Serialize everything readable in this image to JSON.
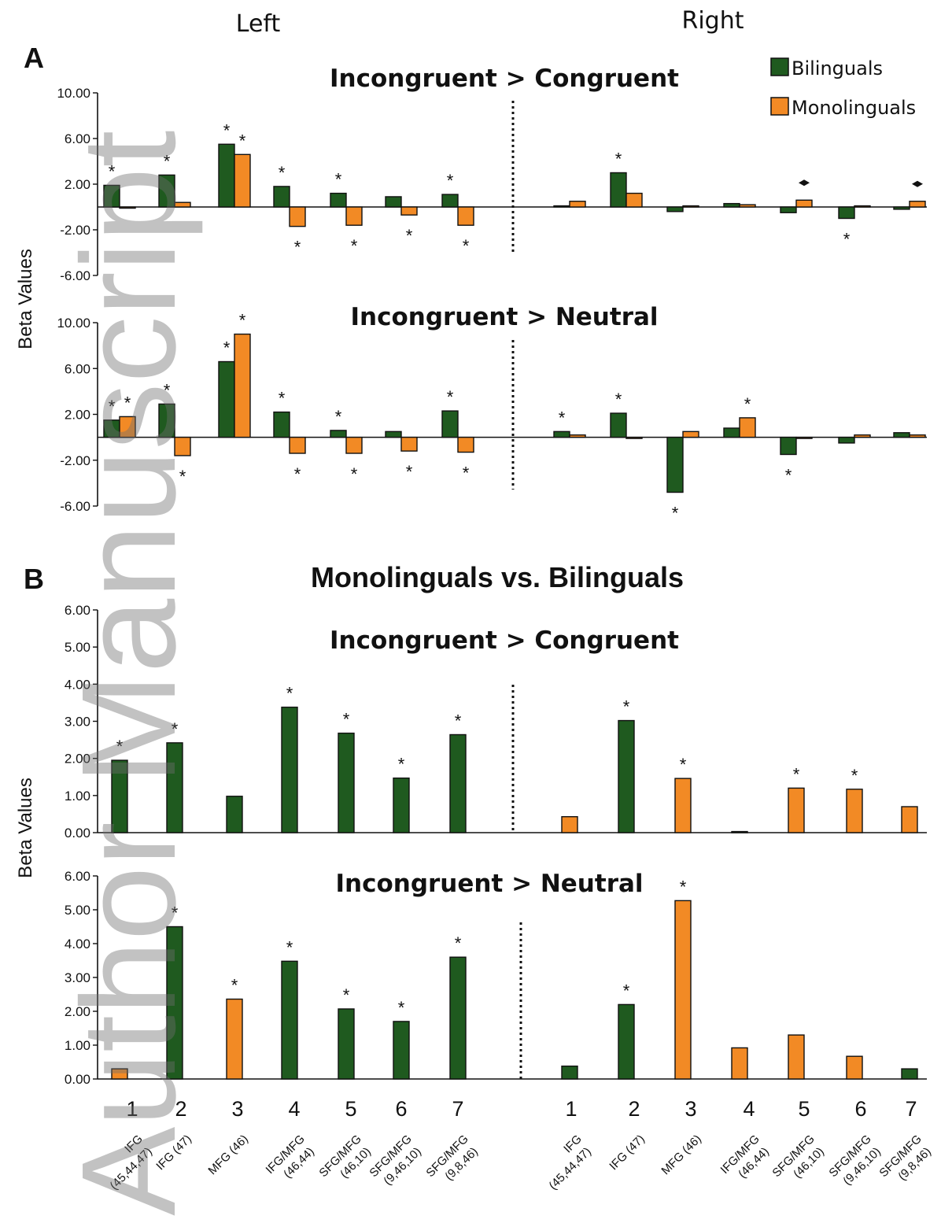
{
  "figure": {
    "hemisphere_labels": [
      "Left",
      "Right"
    ],
    "section_labels": [
      "A",
      "B"
    ],
    "section_b_title": "Monolinguals vs. Bilinguals",
    "ylabel": "Beta Values",
    "watermark": "Author Manuscript",
    "colors": {
      "bilinguals": "#1f5a1f",
      "monolinguals": "#f28a25",
      "axis": "#111111"
    },
    "legend": [
      {
        "name": "Bilinguals",
        "color": "#1f5a1f"
      },
      {
        "name": "Monolinguals",
        "color": "#f28a25"
      }
    ],
    "x_numbers": [
      "1",
      "2",
      "3",
      "4",
      "5",
      "6",
      "7"
    ],
    "region_labels": [
      [
        "IFG",
        "(45,44,47)"
      ],
      [
        "IFG (47)"
      ],
      [
        "MFG (46)"
      ],
      [
        "IFG/MFG",
        "(46,44)"
      ],
      [
        "SFG/MFG",
        "(46,10)"
      ],
      [
        "SFG/MFG",
        "(9,46,10)"
      ],
      [
        "SFG/MFG",
        "(9,8,46)"
      ]
    ]
  },
  "chart_data": [
    {
      "type": "bar",
      "panel": "A",
      "title": "Incongruent > Congruent",
      "ylabel": "Beta Values",
      "ylim": [
        -6,
        10
      ],
      "yticks": [
        "10.00",
        "6.00",
        "2.00",
        "-2.00",
        "-6.00"
      ],
      "categories": [
        "L1",
        "L2",
        "L3",
        "L4",
        "L5",
        "L6",
        "L7",
        "R1",
        "R2",
        "R3",
        "R4",
        "R5",
        "R6",
        "R7"
      ],
      "series": [
        {
          "name": "Bilinguals",
          "values": [
            1.9,
            2.8,
            5.5,
            1.8,
            1.2,
            0.9,
            1.1,
            0.1,
            3.0,
            -0.4,
            0.3,
            -0.5,
            -1.0,
            -0.2
          ]
        },
        {
          "name": "Monolinguals",
          "values": [
            -0.1,
            0.4,
            4.6,
            -1.7,
            -1.6,
            -0.7,
            -1.6,
            0.5,
            1.2,
            0.1,
            0.2,
            0.6,
            0.1,
            0.5
          ]
        }
      ],
      "markers": [
        {
          "cat": 0,
          "series": 0,
          "mark": "*"
        },
        {
          "cat": 1,
          "series": 0,
          "mark": "*"
        },
        {
          "cat": 2,
          "series": 0,
          "mark": "*"
        },
        {
          "cat": 2,
          "series": 1,
          "mark": "*"
        },
        {
          "cat": 3,
          "series": 0,
          "mark": "*"
        },
        {
          "cat": 3,
          "series": 1,
          "mark": "*"
        },
        {
          "cat": 4,
          "series": 0,
          "mark": "*"
        },
        {
          "cat": 4,
          "series": 1,
          "mark": "*"
        },
        {
          "cat": 5,
          "series": 1,
          "mark": "*"
        },
        {
          "cat": 6,
          "series": 0,
          "mark": "*"
        },
        {
          "cat": 6,
          "series": 1,
          "mark": "*"
        },
        {
          "cat": 8,
          "series": 0,
          "mark": "*"
        },
        {
          "cat": 11,
          "series": 1,
          "mark": "diamond"
        },
        {
          "cat": 12,
          "series": 0,
          "mark": "*"
        },
        {
          "cat": 13,
          "series": 1,
          "mark": "diamond"
        }
      ]
    },
    {
      "type": "bar",
      "panel": "A",
      "title": "Incongruent > Neutral",
      "ylabel": "Beta Values",
      "ylim": [
        -6,
        10
      ],
      "yticks": [
        "10.00",
        "6.00",
        "2.00",
        "-2.00",
        "-6.00"
      ],
      "categories": [
        "L1",
        "L2",
        "L3",
        "L4",
        "L5",
        "L6",
        "L7",
        "R1",
        "R2",
        "R3",
        "R4",
        "R5",
        "R6",
        "R7"
      ],
      "series": [
        {
          "name": "Bilinguals",
          "values": [
            1.5,
            2.9,
            6.6,
            2.2,
            0.6,
            0.5,
            2.3,
            0.5,
            2.1,
            -4.8,
            0.8,
            -1.5,
            -0.5,
            0.4
          ]
        },
        {
          "name": "Monolinguals",
          "values": [
            1.8,
            -1.6,
            9.0,
            -1.4,
            -1.4,
            -1.2,
            -1.3,
            0.2,
            -0.1,
            0.5,
            1.7,
            -0.1,
            0.2,
            0.2
          ]
        }
      ],
      "markers": [
        {
          "cat": 0,
          "series": 0,
          "mark": "*"
        },
        {
          "cat": 0,
          "series": 1,
          "mark": "*"
        },
        {
          "cat": 1,
          "series": 0,
          "mark": "*"
        },
        {
          "cat": 1,
          "series": 1,
          "mark": "*"
        },
        {
          "cat": 2,
          "series": 0,
          "mark": "*"
        },
        {
          "cat": 2,
          "series": 1,
          "mark": "*"
        },
        {
          "cat": 3,
          "series": 0,
          "mark": "*"
        },
        {
          "cat": 3,
          "series": 1,
          "mark": "*"
        },
        {
          "cat": 4,
          "series": 0,
          "mark": "*"
        },
        {
          "cat": 4,
          "series": 1,
          "mark": "*"
        },
        {
          "cat": 5,
          "series": 1,
          "mark": "*"
        },
        {
          "cat": 6,
          "series": 0,
          "mark": "*"
        },
        {
          "cat": 6,
          "series": 1,
          "mark": "*"
        },
        {
          "cat": 7,
          "series": 0,
          "mark": "*"
        },
        {
          "cat": 8,
          "series": 0,
          "mark": "*"
        },
        {
          "cat": 9,
          "series": 0,
          "mark": "*"
        },
        {
          "cat": 10,
          "series": 1,
          "mark": "*"
        },
        {
          "cat": 11,
          "series": 0,
          "mark": "*"
        }
      ]
    },
    {
      "type": "bar",
      "panel": "B",
      "title": "Incongruent > Congruent",
      "ylabel": "Beta Values",
      "ylim": [
        0,
        6
      ],
      "yticks": [
        "6.00",
        "5.00",
        "4.00",
        "3.00",
        "2.00",
        "1.00",
        "0.00"
      ],
      "categories": [
        "L1",
        "L2",
        "L3",
        "L4",
        "L5",
        "L6",
        "L7",
        "R1",
        "R2",
        "R3",
        "R4",
        "R5",
        "R6",
        "R7"
      ],
      "values": [
        1.95,
        2.42,
        0.98,
        3.38,
        2.68,
        1.47,
        2.64,
        0.43,
        3.02,
        1.46,
        0.03,
        1.2,
        1.17,
        0.7
      ],
      "bar_group": [
        "Bilinguals",
        "Bilinguals",
        "Bilinguals",
        "Bilinguals",
        "Bilinguals",
        "Bilinguals",
        "Bilinguals",
        "Monolinguals",
        "Bilinguals",
        "Monolinguals",
        "Bilinguals",
        "Monolinguals",
        "Monolinguals",
        "Monolinguals"
      ],
      "stars": [
        0,
        1,
        3,
        4,
        5,
        6,
        8,
        9,
        11,
        12
      ]
    },
    {
      "type": "bar",
      "panel": "B",
      "title": "Incongruent > Neutral",
      "ylabel": "Beta Values",
      "ylim": [
        0,
        6
      ],
      "yticks": [
        "6.00",
        "5.00",
        "4.00",
        "3.00",
        "2.00",
        "1.00",
        "0.00"
      ],
      "categories": [
        "L1",
        "L2",
        "L3",
        "L4",
        "L5",
        "L6",
        "L7",
        "R1",
        "R2",
        "R3",
        "R4",
        "R5",
        "R6",
        "R7"
      ],
      "values": [
        0.3,
        4.5,
        2.36,
        3.48,
        2.07,
        1.7,
        3.6,
        0.38,
        2.2,
        5.27,
        0.92,
        1.3,
        0.67,
        0.3
      ],
      "bar_group": [
        "Monolinguals",
        "Bilinguals",
        "Monolinguals",
        "Bilinguals",
        "Bilinguals",
        "Bilinguals",
        "Bilinguals",
        "Bilinguals",
        "Bilinguals",
        "Monolinguals",
        "Monolinguals",
        "Monolinguals",
        "Monolinguals",
        "Bilinguals"
      ],
      "stars": [
        1,
        2,
        3,
        4,
        5,
        6,
        8,
        9
      ]
    }
  ]
}
